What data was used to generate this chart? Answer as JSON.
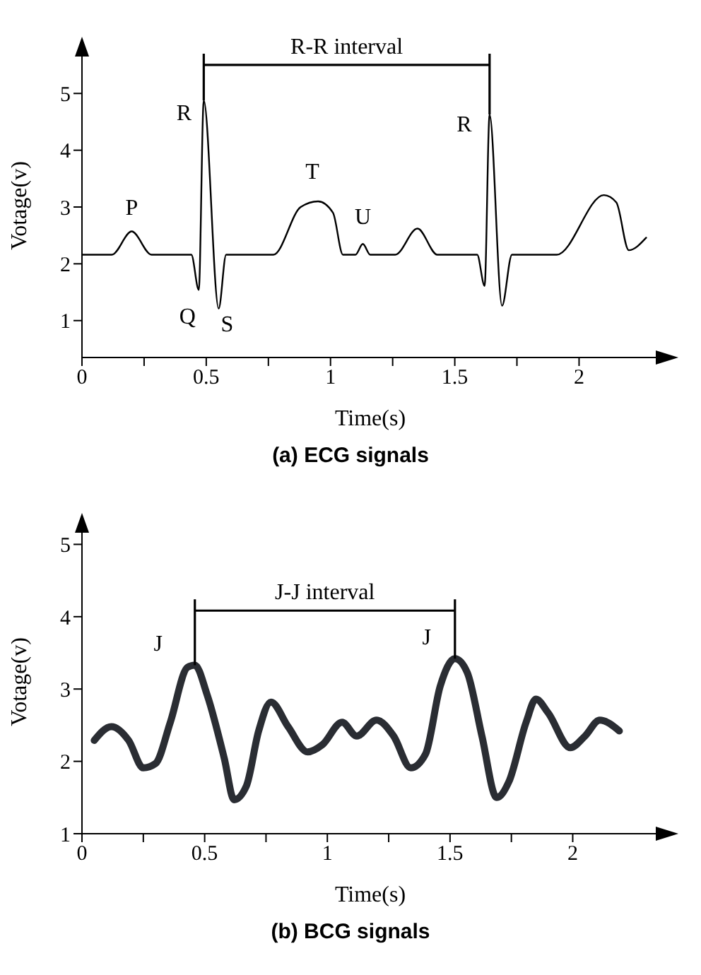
{
  "chart_data": [
    {
      "type": "line",
      "title": "(a) ECG signals",
      "xlabel": "Time(s)",
      "ylabel": "Votage(v)",
      "x": [
        0,
        0.12,
        0.2,
        0.28,
        0.44,
        0.47,
        0.49,
        0.55,
        0.58,
        0.77,
        0.88,
        0.95,
        1.01,
        1.05,
        1.1,
        1.13,
        1.16,
        1.26,
        1.35,
        1.43,
        1.59,
        1.62,
        1.64,
        1.69,
        1.73,
        1.91,
        2.1,
        2.15,
        2.2,
        2.27
      ],
      "series": [
        {
          "color": "#000000",
          "values": [
            2.16,
            2.16,
            2.57,
            2.16,
            2.16,
            1.54,
            4.88,
            1.21,
            2.16,
            2.16,
            3.0,
            3.1,
            2.9,
            2.16,
            2.16,
            2.35,
            2.16,
            2.16,
            2.62,
            2.16,
            2.16,
            1.61,
            4.63,
            1.26,
            2.16,
            2.16,
            3.21,
            3.08,
            2.24,
            2.46
          ]
        }
      ],
      "xlim": [
        0,
        2.32
      ],
      "ylim": [
        0.35,
        5.7
      ],
      "xticks": [
        0,
        {
          "value": 0.25,
          "label": null
        },
        0.5,
        {
          "value": 0.75,
          "label": null
        },
        1,
        {
          "value": 1.25,
          "label": null
        },
        1.5,
        {
          "value": 1.75,
          "label": null
        },
        2
      ],
      "yticks": [
        1,
        2,
        3,
        4,
        5
      ],
      "annotations": [
        "R-R interval",
        {
          "text": "R",
          "x": 0.49,
          "y": 4.88
        },
        {
          "text": "R",
          "x": 1.64,
          "y": 4.63
        },
        {
          "text": "P",
          "x": 0.2,
          "y": 2.57
        },
        {
          "text": "Q",
          "x": 0.47,
          "y": 1.54
        },
        {
          "text": "S",
          "x": 0.55,
          "y": 1.21
        },
        {
          "text": "T",
          "x": 0.95,
          "y": 3.1
        },
        {
          "text": "U",
          "x": 1.13,
          "y": 2.35
        }
      ]
    },
    {
      "type": "line",
      "title": "(b) BCG signals",
      "xlabel": "Time(s)",
      "ylabel": "Votage(v)",
      "x": [
        0.05,
        0.12,
        0.19,
        0.25,
        0.3,
        0.36,
        0.43,
        0.46,
        0.51,
        0.58,
        0.62,
        0.67,
        0.72,
        0.77,
        0.84,
        0.92,
        0.98,
        1.06,
        1.12,
        1.2,
        1.27,
        1.34,
        1.4,
        1.46,
        1.52,
        1.57,
        1.63,
        1.69,
        1.74,
        1.81,
        1.85,
        1.9,
        1.99,
        2.05,
        2.11,
        2.19
      ],
      "series": [
        {
          "color": "#2a2d33",
          "values": [
            2.29,
            2.48,
            2.29,
            1.91,
            1.97,
            2.54,
            3.3,
            3.33,
            2.92,
            2.04,
            1.47,
            1.66,
            2.42,
            2.82,
            2.48,
            2.13,
            2.23,
            2.54,
            2.35,
            2.57,
            2.35,
            1.91,
            2.1,
            3.04,
            3.42,
            3.23,
            2.35,
            1.5,
            1.72,
            2.54,
            2.86,
            2.67,
            2.19,
            2.35,
            2.57,
            2.42
          ]
        }
      ],
      "xlim": [
        0,
        2.35
      ],
      "ylim": [
        1,
        5.2
      ],
      "xticks": [
        0,
        {
          "value": 0.25,
          "label": null
        },
        0.5,
        {
          "value": 0.75,
          "label": null
        },
        1,
        {
          "value": 1.25,
          "label": null
        },
        1.5,
        {
          "value": 1.75,
          "label": null
        },
        2
      ],
      "yticks": [
        1,
        2,
        3,
        4,
        5
      ],
      "annotations": [
        "J-J interval",
        {
          "text": "J",
          "x": 0.46,
          "y": 3.33
        },
        {
          "text": "J",
          "x": 1.52,
          "y": 3.42
        }
      ]
    }
  ]
}
